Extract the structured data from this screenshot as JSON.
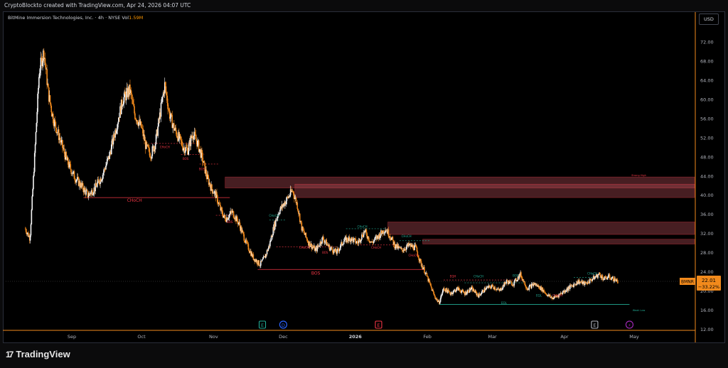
{
  "header": {
    "caption": "CryptoBlockto created with TradingView.com, Apr 24, 2026 04:07 UTC"
  },
  "symbol_info": {
    "name": "BitMine Immersion Technologies, Inc. · 4h · NYSE",
    "vol_label": "Vol",
    "vol_value": "1.59M"
  },
  "currency_button": "USD",
  "brand": {
    "logo": "17",
    "name": "TradingView"
  },
  "price_label": {
    "ticker": "BMNR",
    "price": "22.01",
    "change": "−33.22%"
  },
  "event_markers": [
    {
      "id": "earnings-1",
      "letter": "E",
      "color": "#22ab94",
      "date": "Nov 22"
    },
    {
      "id": "dividend-1",
      "letter": "D",
      "color": "#2962ff",
      "date": "Dec 1"
    },
    {
      "id": "earnings-2",
      "letter": "E",
      "color": "#f23645",
      "date": "Jan 11"
    },
    {
      "id": "earnings-3",
      "letter": "E",
      "color": "#b2b5be",
      "date": "Apr 14"
    },
    {
      "id": "split-1",
      "letter": "⚡",
      "color": "#9c27b0",
      "date": "Apr 29"
    }
  ],
  "chart_data": {
    "type": "candlestick",
    "title": "BitMine Immersion Technologies, Inc. · 4h · NYSE",
    "ylim": [
      12,
      76
    ],
    "y_ticks": [
      12,
      16,
      20,
      24,
      28,
      32,
      36,
      40,
      44,
      48,
      52,
      56,
      60,
      64,
      68,
      72
    ],
    "y_tick_labels": [
      "12.00",
      "16.00",
      "20.00",
      "24.00",
      "28.00",
      "32.00",
      "36.00",
      "40.00",
      "44.00",
      "48.00",
      "52.00",
      "56.00",
      "60.00",
      "64.00",
      "68.00",
      "72.00"
    ],
    "x_ticks": [
      "Sep",
      "Oct",
      "Nov",
      "Dec",
      "2026",
      "Feb",
      "Mar",
      "Apr",
      "May"
    ],
    "x_tick_dates": [
      "Sep 1",
      "Oct 1",
      "Nov 1",
      "Dec 1",
      "Jan 1",
      "Feb 1",
      "Mar 1",
      "Apr 1",
      "May 1"
    ],
    "close_path": [
      [
        "Aug 12",
        33
      ],
      [
        "Aug 14",
        31
      ],
      [
        "Aug 16",
        48
      ],
      [
        "Aug 18",
        66
      ],
      [
        "Aug 20",
        70
      ],
      [
        "Aug 22",
        61
      ],
      [
        "Aug 24",
        56
      ],
      [
        "Aug 26",
        53
      ],
      [
        "Aug 28",
        50
      ],
      [
        "Aug 30",
        47
      ],
      [
        "Sep 2",
        44
      ],
      [
        "Sep 5",
        42
      ],
      [
        "Sep 8",
        40
      ],
      [
        "Sep 11",
        41.5
      ],
      [
        "Sep 14",
        44
      ],
      [
        "Sep 17",
        48
      ],
      [
        "Sep 20",
        54
      ],
      [
        "Sep 23",
        60
      ],
      [
        "Sep 26",
        62
      ],
      [
        "Sep 28",
        57
      ],
      [
        "Oct 1",
        54
      ],
      [
        "Oct 3",
        50
      ],
      [
        "Oct 5",
        48.5
      ],
      [
        "Oct 7",
        51
      ],
      [
        "Oct 9",
        57
      ],
      [
        "Oct 11",
        63
      ],
      [
        "Oct 13",
        57
      ],
      [
        "Oct 15",
        54
      ],
      [
        "Oct 17",
        52
      ],
      [
        "Oct 19",
        50
      ],
      [
        "Oct 21",
        49.5
      ],
      [
        "Oct 23",
        53
      ],
      [
        "Oct 25",
        51
      ],
      [
        "Oct 27",
        48
      ],
      [
        "Oct 29",
        44
      ],
      [
        "Oct 31",
        41.5
      ],
      [
        "Nov 2",
        40
      ],
      [
        "Nov 4",
        37
      ],
      [
        "Nov 6",
        35
      ],
      [
        "Nov 9",
        36.5
      ],
      [
        "Nov 12",
        34
      ],
      [
        "Nov 15",
        30
      ],
      [
        "Nov 18",
        27
      ],
      [
        "Nov 21",
        25.5
      ],
      [
        "Nov 23",
        27
      ],
      [
        "Nov 25",
        29.5
      ],
      [
        "Nov 27",
        33.5
      ],
      [
        "Nov 29",
        36.5
      ],
      [
        "Dec 1",
        38
      ],
      [
        "Dec 3",
        39.5
      ],
      [
        "Dec 5",
        41
      ],
      [
        "Dec 7",
        38
      ],
      [
        "Dec 9",
        33
      ],
      [
        "Dec 12",
        30
      ],
      [
        "Dec 15",
        28.5
      ],
      [
        "Dec 18",
        31
      ],
      [
        "Dec 21",
        29
      ],
      [
        "Dec 24",
        28
      ],
      [
        "Dec 27",
        30.5
      ],
      [
        "Dec 30",
        31
      ],
      [
        "Jan 2",
        30
      ],
      [
        "Jan 5",
        32.5
      ],
      [
        "Jan 8",
        30
      ],
      [
        "Jan 11",
        31.5
      ],
      [
        "Jan 14",
        33
      ],
      [
        "Jan 16",
        31.5
      ],
      [
        "Jan 18",
        29.5
      ],
      [
        "Jan 21",
        28.5
      ],
      [
        "Jan 24",
        29.5
      ],
      [
        "Jan 27",
        29
      ],
      [
        "Jan 29",
        26
      ],
      [
        "Jan 31",
        24
      ],
      [
        "Feb 2",
        21.5
      ],
      [
        "Feb 4",
        19
      ],
      [
        "Feb 6",
        17.5
      ],
      [
        "Feb 8",
        20.5
      ],
      [
        "Feb 11",
        19.5
      ],
      [
        "Feb 14",
        20.5
      ],
      [
        "Feb 17",
        19.5
      ],
      [
        "Feb 20",
        20.5
      ],
      [
        "Feb 23",
        19
      ],
      [
        "Feb 26",
        20.5
      ],
      [
        "Mar 1",
        21
      ],
      [
        "Mar 4",
        20
      ],
      [
        "Mar 7",
        22
      ],
      [
        "Mar 10",
        21.5
      ],
      [
        "Mar 13",
        23.5
      ],
      [
        "Mar 16",
        20.5
      ],
      [
        "Mar 19",
        21.5
      ],
      [
        "Mar 22",
        20.5
      ],
      [
        "Mar 25",
        19
      ],
      [
        "Mar 27",
        18.5
      ],
      [
        "Mar 29",
        19
      ],
      [
        "Apr 1",
        20
      ],
      [
        "Apr 4",
        21
      ],
      [
        "Apr 7",
        22
      ],
      [
        "Apr 10",
        21.5
      ],
      [
        "Apr 13",
        22.5
      ],
      [
        "Apr 16",
        23.5
      ],
      [
        "Apr 18",
        22.5
      ],
      [
        "Apr 20",
        23
      ],
      [
        "Apr 22",
        22.5
      ],
      [
        "Apr 24",
        22.01
      ]
    ],
    "supply_zones": [
      {
        "from": "Nov 6",
        "to": "May 31",
        "low": 41.5,
        "high": 43.8
      },
      {
        "from": "Dec 6",
        "to": "May 31",
        "low": 39.5,
        "high": 42.3
      },
      {
        "from": "Jan 15",
        "to": "May 31",
        "low": 31.8,
        "high": 34.4
      },
      {
        "from": "Jan 30",
        "to": "May 31",
        "low": 29.8,
        "high": 30.8
      }
    ],
    "annotations": [
      {
        "text": "CHoCH",
        "date": "Sep 28",
        "price": 38.6,
        "color": "#f23645",
        "size": 6
      },
      {
        "text": "CHoCH",
        "date": "Oct 11",
        "price": 49.8,
        "color": "#f23645",
        "size": 4
      },
      {
        "text": "BOS",
        "date": "Oct 20",
        "price": 47.4,
        "color": "#f23645",
        "size": 4
      },
      {
        "text": "BOS",
        "date": "Oct 27",
        "price": 45.2,
        "color": "#f23645",
        "size": 4
      },
      {
        "text": "BOS",
        "date": "Nov 8",
        "price": 34.2,
        "color": "#f23645",
        "size": 4
      },
      {
        "text": "CHoCH",
        "date": "Nov 27",
        "price": 35.5,
        "color": "#22ab94",
        "size": 4
      },
      {
        "text": "CHoCH",
        "date": "Dec 10",
        "price": 28.8,
        "color": "#f23645",
        "size": 4
      },
      {
        "text": "BOS",
        "date": "Dec 19",
        "price": 27.8,
        "color": "#f23645",
        "size": 4
      },
      {
        "text": "BOS",
        "date": "Dec 15",
        "price": 23.4,
        "color": "#f23645",
        "size": 6
      },
      {
        "text": "CHoCH",
        "date": "Jan 4",
        "price": 33.2,
        "color": "#22ab94",
        "size": 4
      },
      {
        "text": "CHoCH",
        "date": "Jan 10",
        "price": 28.8,
        "color": "#f23645",
        "size": 4
      },
      {
        "text": "CHoCH",
        "date": "Jan 23",
        "price": 31.2,
        "color": "#22ab94",
        "size": 4
      },
      {
        "text": "CHoCH",
        "date": "Jan 26",
        "price": 27.2,
        "color": "#f23645",
        "size": 4
      },
      {
        "text": "EQH",
        "date": "Feb 12",
        "price": 22.8,
        "color": "#f23645",
        "size": 4
      },
      {
        "text": "CHoCH",
        "date": "Feb 23",
        "price": 22.8,
        "color": "#22ab94",
        "size": 4
      },
      {
        "text": "BOS",
        "date": "Mar 11",
        "price": 23.0,
        "color": "#22ab94",
        "size": 4
      },
      {
        "text": "EQL",
        "date": "Mar 21",
        "price": 18.8,
        "color": "#22ab94",
        "size": 4
      },
      {
        "text": "CHoCH",
        "date": "Mar 29",
        "price": 18.8,
        "color": "#f23645",
        "size": 4
      },
      {
        "text": "EQL",
        "date": "Mar 6",
        "price": 17.3,
        "color": "#22ab94",
        "size": 4
      },
      {
        "text": "CHoCH",
        "date": "Apr 13",
        "price": 23.4,
        "color": "#22ab94",
        "size": 4
      },
      {
        "text": "Strong High",
        "date": "May 3",
        "price": 44.0,
        "color": "#f23645",
        "size": 3.5
      },
      {
        "text": "Weak Low",
        "date": "May 3",
        "price": 15.8,
        "color": "#22ab94",
        "size": 3.5
      }
    ]
  }
}
